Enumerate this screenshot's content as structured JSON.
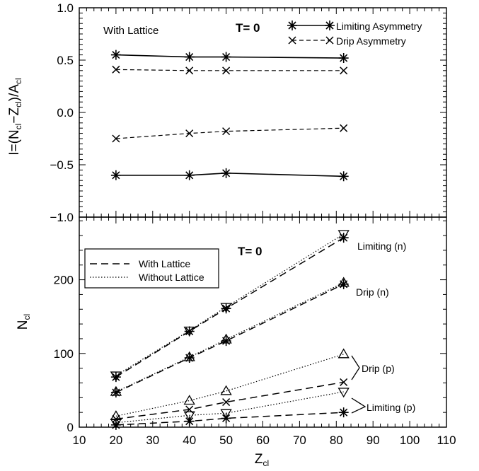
{
  "chart_data": [
    {
      "type": "line",
      "panel": "top",
      "ylabel": "I=(N_cl−Z_cl)/A_cl",
      "ylim": [
        -1.0,
        1.0
      ],
      "xlim": [
        10,
        110
      ],
      "yticks": [
        "−1.0",
        "−0.5",
        "0.0",
        "0.5",
        "1.0"
      ],
      "annotations": [
        "With Lattice",
        "T= 0"
      ],
      "legend": {
        "placement": "top-right",
        "entries": [
          "Limiting Asymmetry",
          "Drip Asymmetry"
        ]
      },
      "series": [
        {
          "name": "Limiting Asymmetry",
          "marker": "asterisk",
          "line": "solid",
          "x": [
            20,
            40,
            50,
            82
          ],
          "y": [
            0.55,
            0.53,
            0.53,
            0.52
          ]
        },
        {
          "name": "Limiting Asymmetry",
          "marker": "asterisk",
          "line": "solid",
          "x": [
            20,
            40,
            50,
            82
          ],
          "y": [
            -0.6,
            -0.6,
            -0.58,
            -0.61
          ]
        },
        {
          "name": "Drip Asymmetry",
          "marker": "x",
          "line": "dashed",
          "x": [
            20,
            40,
            50,
            82
          ],
          "y": [
            0.41,
            0.4,
            0.4,
            0.4
          ]
        },
        {
          "name": "Drip Asymmetry",
          "marker": "x",
          "line": "dashed",
          "x": [
            20,
            40,
            50,
            82
          ],
          "y": [
            -0.25,
            -0.2,
            -0.18,
            -0.15
          ]
        }
      ]
    },
    {
      "type": "line",
      "panel": "bottom",
      "xlabel": "Z_cl",
      "ylabel": "N_cl",
      "xlim": [
        10,
        110
      ],
      "ylim": [
        0,
        285
      ],
      "xticks": [
        "10",
        "20",
        "30",
        "40",
        "50",
        "60",
        "70",
        "80",
        "90",
        "100",
        "110"
      ],
      "yticks": [
        "0",
        "100",
        "200"
      ],
      "annotations": [
        "T= 0"
      ],
      "legend": {
        "placement": "top-left",
        "entries": [
          "With Lattice",
          "Without Lattice"
        ]
      },
      "curve_labels": [
        "Limiting (n)",
        "Drip (n)",
        "Drip (p)",
        "Limiting (p)"
      ],
      "series": [
        {
          "group": "Limiting (n)",
          "style": "With Lattice",
          "marker": "asterisk",
          "x": [
            20,
            40,
            50,
            82
          ],
          "y": [
            68,
            130,
            161,
            257
          ]
        },
        {
          "group": "Limiting (n)",
          "style": "Without Lattice",
          "marker": "triangle-down",
          "x": [
            20,
            40,
            50,
            82
          ],
          "y": [
            70,
            131,
            163,
            262
          ]
        },
        {
          "group": "Drip (n)",
          "style": "With Lattice",
          "marker": "asterisk",
          "x": [
            20,
            40,
            50,
            82
          ],
          "y": [
            47,
            94,
            117,
            194
          ]
        },
        {
          "group": "Drip (n)",
          "style": "Without Lattice",
          "marker": "triangle-up",
          "x": [
            20,
            40,
            50,
            82
          ],
          "y": [
            48,
            95,
            119,
            196
          ]
        },
        {
          "group": "Drip (p)",
          "style": "Without Lattice",
          "marker": "triangle-up",
          "x": [
            20,
            40,
            50,
            82
          ],
          "y": [
            15,
            36,
            49,
            99
          ]
        },
        {
          "group": "Drip (p)",
          "style": "With Lattice",
          "marker": "x",
          "x": [
            20,
            40,
            50,
            82
          ],
          "y": [
            11,
            24,
            34,
            61
          ]
        },
        {
          "group": "Limiting (p)",
          "style": "Without Lattice",
          "marker": "triangle-down",
          "x": [
            20,
            40,
            50,
            82
          ],
          "y": [
            6,
            16,
            19,
            48
          ]
        },
        {
          "group": "Limiting (p)",
          "style": "With Lattice",
          "marker": "asterisk",
          "x": [
            20,
            40,
            50,
            82
          ],
          "y": [
            3,
            8,
            12,
            20
          ]
        }
      ]
    }
  ]
}
